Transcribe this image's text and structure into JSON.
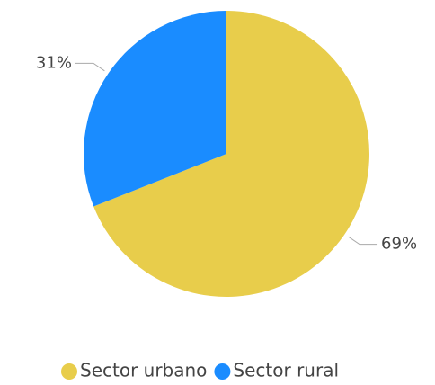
{
  "chart_data": {
    "type": "pie",
    "categories": [
      "Sector urbano",
      "Sector rural"
    ],
    "values": [
      69,
      31
    ],
    "value_labels": [
      "69%",
      "31%"
    ],
    "colors": [
      "#e8cd4b",
      "#1a8cff"
    ],
    "legend": "bottom"
  }
}
